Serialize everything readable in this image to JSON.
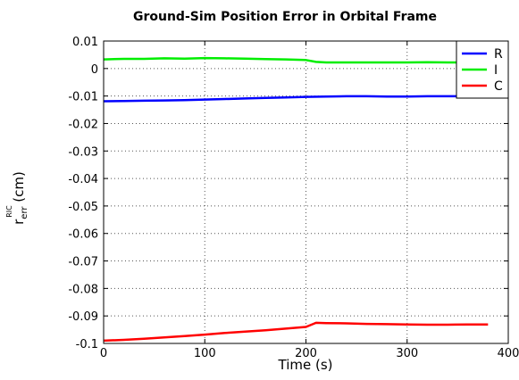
{
  "chart_data": {
    "type": "line",
    "title": "Ground-Sim Position Error in Orbital Frame",
    "xlabel": "Time (s)",
    "ylabel_main": "r",
    "ylabel_sub": "err",
    "ylabel_sup": "RIC",
    "ylabel_unit": "(cm)",
    "xlim": [
      0,
      400
    ],
    "ylim": [
      -0.1,
      0.01
    ],
    "xticks": [
      0,
      100,
      200,
      300,
      400
    ],
    "xtick_labels": [
      "0",
      "100",
      "200",
      "300",
      "400"
    ],
    "yticks": [
      0.01,
      0,
      -0.01,
      -0.02,
      -0.03,
      -0.04,
      -0.05,
      -0.06,
      -0.07,
      -0.08,
      -0.09,
      -0.1
    ],
    "ytick_labels": [
      "0.01",
      "0",
      "-0.01",
      "-0.02",
      "-0.03",
      "-0.04",
      "-0.05",
      "-0.06",
      "-0.07",
      "-0.08",
      "-0.09",
      "-0.1"
    ],
    "grid": true,
    "legend_position": "top-right",
    "series": [
      {
        "name": "R",
        "color": "#0000ff",
        "x": [
          0,
          20,
          40,
          60,
          80,
          100,
          120,
          140,
          160,
          180,
          200,
          220,
          240,
          260,
          280,
          300,
          320,
          340,
          360,
          380
        ],
        "y": [
          -0.0119,
          -0.0118,
          -0.0117,
          -0.0116,
          -0.0115,
          -0.0113,
          -0.0111,
          -0.0109,
          -0.0107,
          -0.0105,
          -0.0103,
          -0.0102,
          -0.0101,
          -0.0101,
          -0.0102,
          -0.0102,
          -0.0101,
          -0.0101,
          -0.0101,
          -0.0101
        ]
      },
      {
        "name": "I",
        "color": "#00ee00",
        "x": [
          0,
          20,
          40,
          60,
          80,
          100,
          120,
          140,
          160,
          180,
          200,
          210,
          220,
          240,
          260,
          280,
          300,
          320,
          340,
          360,
          380
        ],
        "y": [
          0.0033,
          0.0035,
          0.0035,
          0.0037,
          0.0036,
          0.0038,
          0.0037,
          0.0036,
          0.0034,
          0.0033,
          0.0031,
          0.0024,
          0.0022,
          0.0022,
          0.0022,
          0.0022,
          0.0022,
          0.0023,
          0.0022,
          0.0022,
          0.0022
        ]
      },
      {
        "name": "C",
        "color": "#ff0000",
        "x": [
          0,
          20,
          40,
          60,
          80,
          100,
          120,
          140,
          160,
          180,
          200,
          210,
          220,
          240,
          260,
          280,
          300,
          320,
          340,
          360,
          380
        ],
        "y": [
          -0.099,
          -0.0987,
          -0.0983,
          -0.0978,
          -0.0973,
          -0.0968,
          -0.0962,
          -0.0957,
          -0.0952,
          -0.0946,
          -0.094,
          -0.0925,
          -0.0926,
          -0.0927,
          -0.0929,
          -0.093,
          -0.0931,
          -0.0932,
          -0.0932,
          -0.0931,
          -0.0931
        ]
      }
    ]
  }
}
